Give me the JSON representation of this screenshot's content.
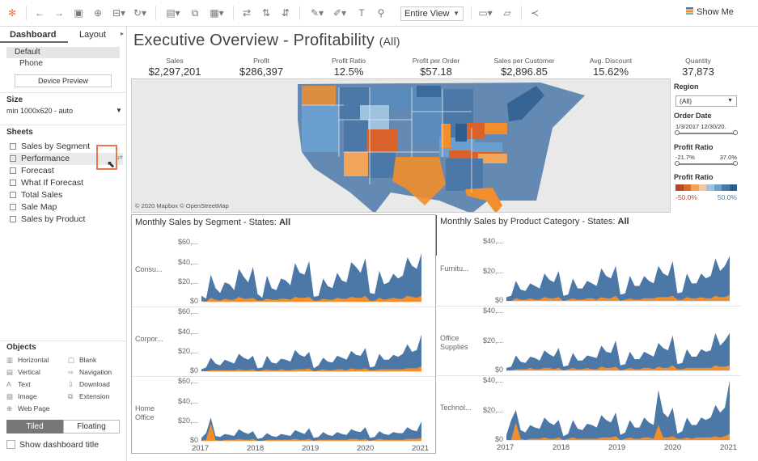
{
  "toolbar": {
    "view_select": "Entire View",
    "show_me": "Show Me",
    "icons": [
      "tableau-logo-icon",
      "undo-icon",
      "redo-icon",
      "save-icon",
      "new-datasource-icon",
      "pause-icon",
      "refresh-icon",
      "new-worksheet-icon",
      "duplicate-icon",
      "clear-icon",
      "swap-icon",
      "sort-asc-icon",
      "sort-desc-icon",
      "highlight-icon",
      "group-icon",
      "labels-icon",
      "pin-icon",
      "presentation-icon",
      "share-icon"
    ]
  },
  "sidebar": {
    "tabs": [
      "Dashboard",
      "Layout"
    ],
    "devices": [
      "Default",
      "Phone"
    ],
    "device_preview": "Device Preview",
    "size_header": "Size",
    "size_value": "min 1000x620 - auto",
    "sheets_header": "Sheets",
    "sheets": [
      "Sales by Segment",
      "Performance",
      "Forecast",
      "What If Forecast",
      "Total Sales",
      "Sale Map",
      "Sales by Product"
    ],
    "objects_header": "Objects",
    "objects": [
      {
        "label": "Horizontal",
        "icon": "horizontal-icon"
      },
      {
        "label": "Blank",
        "icon": "blank-icon"
      },
      {
        "label": "Vertical",
        "icon": "vertical-icon"
      },
      {
        "label": "Navigation",
        "icon": "navigation-icon"
      },
      {
        "label": "Text",
        "icon": "text-icon"
      },
      {
        "label": "Download",
        "icon": "download-icon"
      },
      {
        "label": "Image",
        "icon": "image-icon"
      },
      {
        "label": "Extension",
        "icon": "extension-icon"
      },
      {
        "label": "Web Page",
        "icon": "web-page-icon"
      }
    ],
    "tiled": "Tiled",
    "floating": "Floating",
    "show_title": "Show dashboard title"
  },
  "dashboard": {
    "title": "Executive Overview - Profitability",
    "title_suffix": "(All)",
    "kpis": [
      {
        "label": "Sales",
        "value": "$2,297,201"
      },
      {
        "label": "Profit",
        "value": "$286,397"
      },
      {
        "label": "Profit Ratio",
        "value": "12.5%"
      },
      {
        "label": "Profit per Order",
        "value": "$57.18"
      },
      {
        "label": "Sales per Customer",
        "value": "$2,896.85"
      },
      {
        "label": "Avg. Discount",
        "value": "15.62%"
      },
      {
        "label": "Quantity",
        "value": "37,873"
      }
    ],
    "map_credit": "© 2020 Mapbox © OpenStreetMap"
  },
  "filters": {
    "region_label": "Region",
    "region_value": "(All)",
    "order_date_label": "Order Date",
    "order_date_range": "1/3/2017 12/30/20.",
    "profit_ratio_label": "Profit Ratio",
    "profit_ratio_min": "-21.7%",
    "profit_ratio_max": "37.0%",
    "legend_label": "Profit Ratio",
    "legend_min": "-50.0%",
    "legend_max": "50.0%",
    "legend_colors": [
      "#b5462c",
      "#d96a2e",
      "#f0a155",
      "#f2c89a",
      "#9dc3e0",
      "#6a9fcf",
      "#4c78a8",
      "#2e5e8f"
    ]
  },
  "chart_data": [
    {
      "type": "area",
      "title_prefix": "Monthly Sales by Segment - States:",
      "title_value": "All",
      "x_ticks": [
        "2017",
        "2018",
        "2019",
        "2020",
        "2021"
      ],
      "rows": [
        {
          "label": "Consu...",
          "y_ticks": [
            "$60,...",
            "$40,...",
            "$20,...",
            "$0"
          ],
          "ylim": [
            0,
            62
          ],
          "sales": [
            6,
            3,
            28,
            14,
            9,
            20,
            18,
            12,
            34,
            26,
            20,
            36,
            8,
            4,
            27,
            14,
            12,
            24,
            22,
            17,
            40,
            30,
            28,
            42,
            5,
            6,
            24,
            16,
            14,
            30,
            22,
            20,
            41,
            36,
            30,
            45,
            9,
            8,
            32,
            18,
            20,
            29,
            24,
            27,
            46,
            37,
            34,
            50
          ],
          "profit": [
            1,
            0,
            4,
            2,
            1,
            3,
            2,
            2,
            5,
            3,
            3,
            4,
            1,
            1,
            3,
            2,
            2,
            3,
            3,
            2,
            5,
            4,
            4,
            5,
            1,
            1,
            3,
            2,
            2,
            4,
            3,
            3,
            5,
            4,
            4,
            6,
            1,
            1,
            4,
            2,
            3,
            4,
            3,
            3,
            6,
            5,
            4,
            6
          ]
        },
        {
          "label": "Corpor...",
          "y_ticks": [
            "$60,...",
            "$40,...",
            "$20,...",
            "$0"
          ],
          "ylim": [
            0,
            62
          ],
          "sales": [
            2,
            4,
            14,
            8,
            6,
            12,
            10,
            8,
            18,
            14,
            12,
            16,
            3,
            4,
            16,
            9,
            8,
            13,
            12,
            10,
            22,
            17,
            15,
            20,
            3,
            6,
            14,
            10,
            9,
            16,
            14,
            12,
            21,
            17,
            16,
            24,
            4,
            5,
            18,
            12,
            12,
            17,
            15,
            18,
            28,
            20,
            22,
            38
          ],
          "profit": [
            0,
            0,
            1,
            1,
            1,
            1,
            1,
            1,
            2,
            1,
            1,
            2,
            0,
            1,
            2,
            1,
            1,
            2,
            1,
            1,
            2,
            2,
            2,
            3,
            0,
            1,
            2,
            1,
            1,
            2,
            2,
            1,
            3,
            2,
            2,
            3,
            1,
            1,
            2,
            2,
            2,
            2,
            2,
            2,
            3,
            3,
            3,
            5
          ]
        },
        {
          "label": "Home\nOffice",
          "y_ticks": [
            "$60,...",
            "$40,...",
            "$20,...",
            "$0"
          ],
          "ylim": [
            0,
            62
          ],
          "sales": [
            3,
            8,
            24,
            5,
            4,
            7,
            6,
            5,
            12,
            9,
            7,
            10,
            2,
            3,
            8,
            5,
            4,
            7,
            6,
            5,
            11,
            9,
            7,
            13,
            3,
            4,
            9,
            6,
            5,
            9,
            7,
            6,
            12,
            10,
            9,
            14,
            3,
            4,
            10,
            7,
            6,
            9,
            8,
            8,
            14,
            11,
            10,
            20
          ],
          "profit": [
            0,
            1,
            18,
            1,
            0,
            1,
            1,
            1,
            2,
            1,
            1,
            2,
            0,
            0,
            1,
            1,
            1,
            1,
            1,
            1,
            2,
            1,
            1,
            2,
            0,
            1,
            1,
            1,
            1,
            1,
            1,
            1,
            2,
            2,
            1,
            2,
            0,
            1,
            2,
            1,
            1,
            1,
            1,
            1,
            2,
            2,
            2,
            3
          ]
        }
      ]
    },
    {
      "type": "area",
      "title_prefix": "Monthly Sales by Product Category - States:",
      "title_value": "All",
      "x_ticks": [
        "2017",
        "2018",
        "2019",
        "2020",
        "2021"
      ],
      "rows": [
        {
          "label": "Furnitu...",
          "y_ticks": [
            "$40,...",
            "$20,...",
            "$0"
          ],
          "ylim": [
            0,
            48
          ],
          "sales": [
            3,
            4,
            16,
            9,
            8,
            14,
            12,
            10,
            22,
            17,
            15,
            24,
            4,
            5,
            18,
            10,
            10,
            16,
            14,
            12,
            26,
            20,
            18,
            28,
            5,
            6,
            20,
            12,
            12,
            20,
            16,
            14,
            28,
            22,
            20,
            32,
            6,
            7,
            22,
            14,
            14,
            22,
            18,
            20,
            34,
            24,
            28,
            36
          ],
          "profit": [
            0,
            0,
            2,
            1,
            1,
            2,
            1,
            1,
            3,
            2,
            2,
            3,
            0,
            1,
            2,
            1,
            1,
            2,
            2,
            1,
            3,
            2,
            2,
            4,
            0,
            1,
            2,
            1,
            1,
            2,
            2,
            2,
            3,
            3,
            3,
            4,
            1,
            1,
            3,
            2,
            2,
            3,
            2,
            2,
            4,
            3,
            3,
            5
          ]
        },
        {
          "label": "Office\nSupplies",
          "y_ticks": [
            "$40,...",
            "$20,...",
            "$0"
          ],
          "ylim": [
            0,
            48
          ],
          "sales": [
            2,
            3,
            12,
            7,
            6,
            11,
            10,
            8,
            16,
            13,
            11,
            18,
            3,
            4,
            14,
            8,
            8,
            12,
            11,
            10,
            20,
            15,
            14,
            24,
            4,
            5,
            15,
            9,
            9,
            15,
            13,
            11,
            22,
            18,
            16,
            28,
            5,
            6,
            17,
            11,
            11,
            17,
            15,
            16,
            30,
            20,
            24,
            30
          ],
          "profit": [
            0,
            0,
            1,
            1,
            1,
            2,
            1,
            1,
            2,
            2,
            1,
            2,
            0,
            1,
            2,
            1,
            1,
            2,
            1,
            1,
            3,
            2,
            2,
            3,
            0,
            1,
            2,
            1,
            1,
            2,
            2,
            1,
            3,
            2,
            2,
            4,
            1,
            1,
            2,
            2,
            2,
            2,
            2,
            2,
            4,
            3,
            3,
            4
          ]
        },
        {
          "label": "Technol...",
          "y_ticks": [
            "$40,...",
            "$20,...",
            "$0"
          ],
          "ylim": [
            0,
            48
          ],
          "sales": [
            4,
            16,
            24,
            8,
            6,
            12,
            10,
            9,
            18,
            14,
            12,
            16,
            3,
            5,
            16,
            9,
            8,
            13,
            12,
            10,
            20,
            16,
            14,
            22,
            4,
            6,
            16,
            10,
            10,
            18,
            14,
            12,
            40,
            22,
            18,
            26,
            5,
            7,
            18,
            12,
            12,
            18,
            16,
            18,
            28,
            22,
            26,
            48
          ],
          "profit": [
            0,
            0,
            14,
            1,
            0,
            1,
            1,
            1,
            2,
            1,
            1,
            2,
            0,
            1,
            2,
            1,
            1,
            1,
            1,
            1,
            2,
            2,
            2,
            3,
            0,
            1,
            2,
            1,
            1,
            2,
            2,
            1,
            12,
            2,
            2,
            3,
            1,
            1,
            2,
            1,
            2,
            2,
            2,
            2,
            3,
            2,
            3,
            5
          ]
        }
      ]
    }
  ]
}
